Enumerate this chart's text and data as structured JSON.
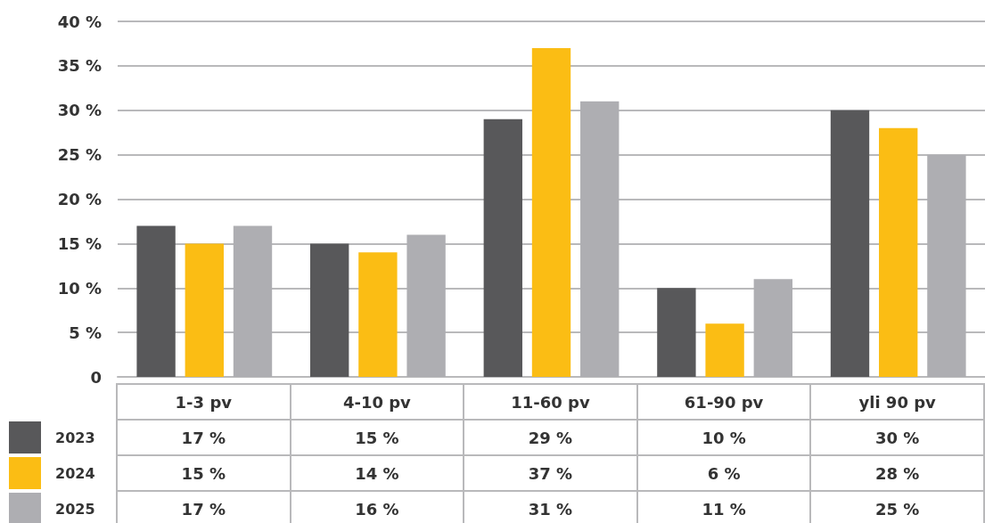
{
  "chart_data": {
    "type": "bar",
    "categories": [
      "1-3 pv",
      "4-10 pv",
      "11-60 pv",
      "61-90 pv",
      "yli 90 pv"
    ],
    "series": [
      {
        "name": "2023",
        "color": "#58585a",
        "values": [
          17,
          15,
          29,
          10,
          30
        ],
        "value_labels": [
          "17 %",
          "15 %",
          "29 %",
          "10 %",
          "30 %"
        ]
      },
      {
        "name": "2024",
        "color": "#fbbd14",
        "values": [
          15,
          14,
          37,
          6,
          28
        ],
        "value_labels": [
          "15 %",
          "14 %",
          "37 %",
          "6 %",
          "28 %"
        ]
      },
      {
        "name": "2025",
        "color": "#aeaeb2",
        "values": [
          17,
          16,
          31,
          11,
          25
        ],
        "value_labels": [
          "17 %",
          "16 %",
          "31 %",
          "11 %",
          "25 %"
        ]
      }
    ],
    "ylim": [
      0,
      40
    ],
    "yticks": [
      0,
      {
        "value": 5,
        "label": "5 %"
      },
      {
        "value": 10,
        "label": "10 %"
      },
      {
        "value": 15,
        "label": "15 %"
      },
      {
        "value": 20,
        "label": "20 %"
      },
      {
        "value": 25,
        "label": "25 %"
      },
      {
        "value": 30,
        "label": "30 %"
      },
      {
        "value": 35,
        "label": "35 %"
      },
      {
        "value": 40,
        "label": "40 %"
      }
    ],
    "grid": "y",
    "legend": "bottom left"
  }
}
